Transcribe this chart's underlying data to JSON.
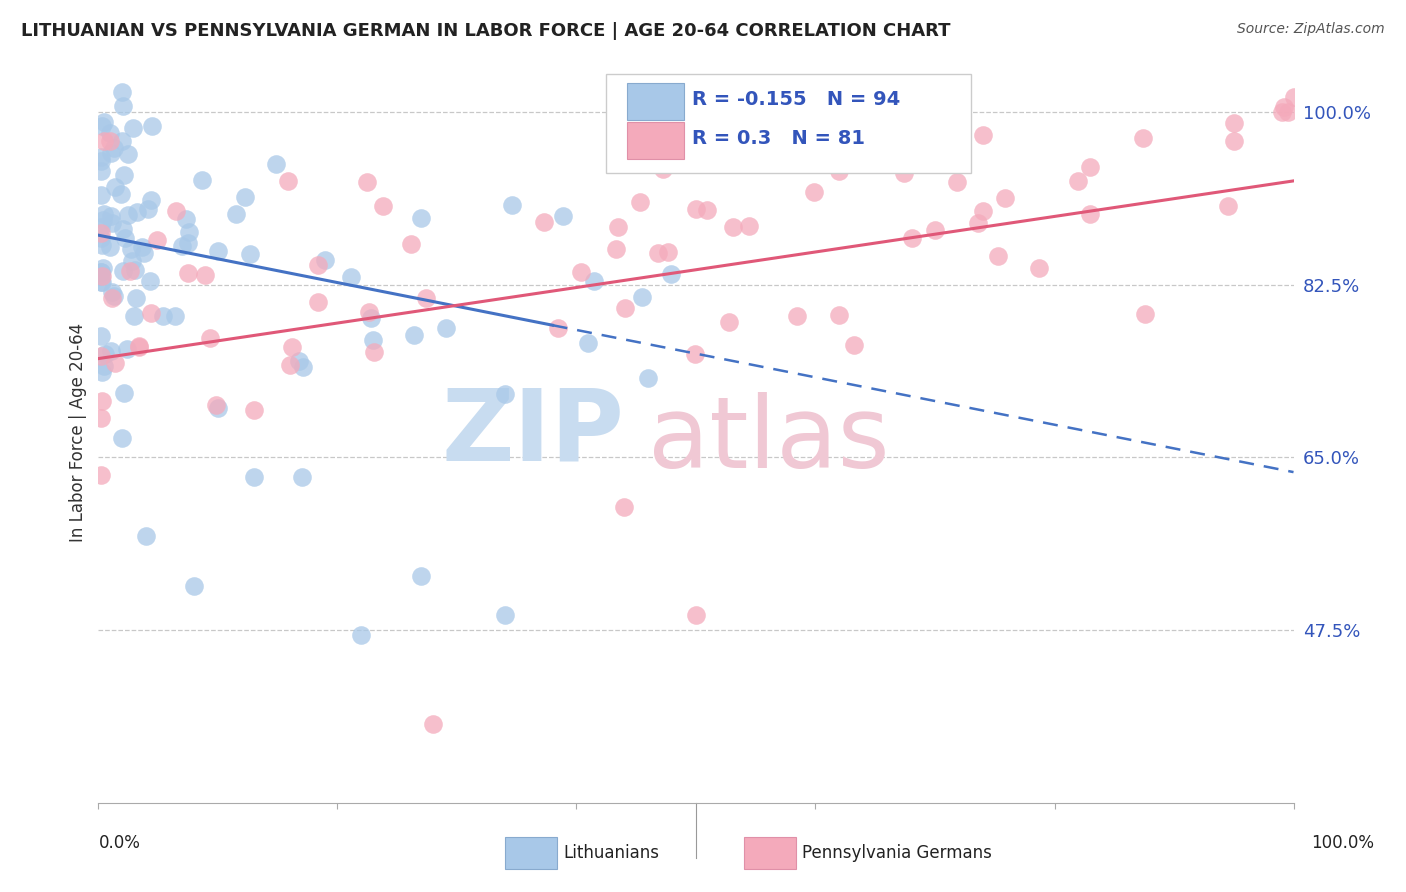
{
  "title": "LITHUANIAN VS PENNSYLVANIA GERMAN IN LABOR FORCE | AGE 20-64 CORRELATION CHART",
  "source": "Source: ZipAtlas.com",
  "ylabel": "In Labor Force | Age 20-64",
  "ytick_vals": [
    1.0,
    0.825,
    0.65,
    0.475
  ],
  "ytick_labels": [
    "100.0%",
    "82.5%",
    "65.0%",
    "47.5%"
  ],
  "xmin": 0.0,
  "xmax": 1.0,
  "ymin": 0.3,
  "ymax": 1.05,
  "blue_R": -0.155,
  "blue_N": 94,
  "pink_R": 0.3,
  "pink_N": 81,
  "blue_color": "#A8C8E8",
  "pink_color": "#F4AABB",
  "blue_line_color": "#4472C4",
  "pink_line_color": "#E05878",
  "grid_color": "#C8C8C8",
  "background_color": "#FFFFFF",
  "watermark_zip_color": "#C8DCF0",
  "watermark_atlas_color": "#F0C8D4",
  "legend_text_color": "#3355BB",
  "title_color": "#222222",
  "ytick_color": "#3355BB",
  "xlabel_color": "#222222"
}
